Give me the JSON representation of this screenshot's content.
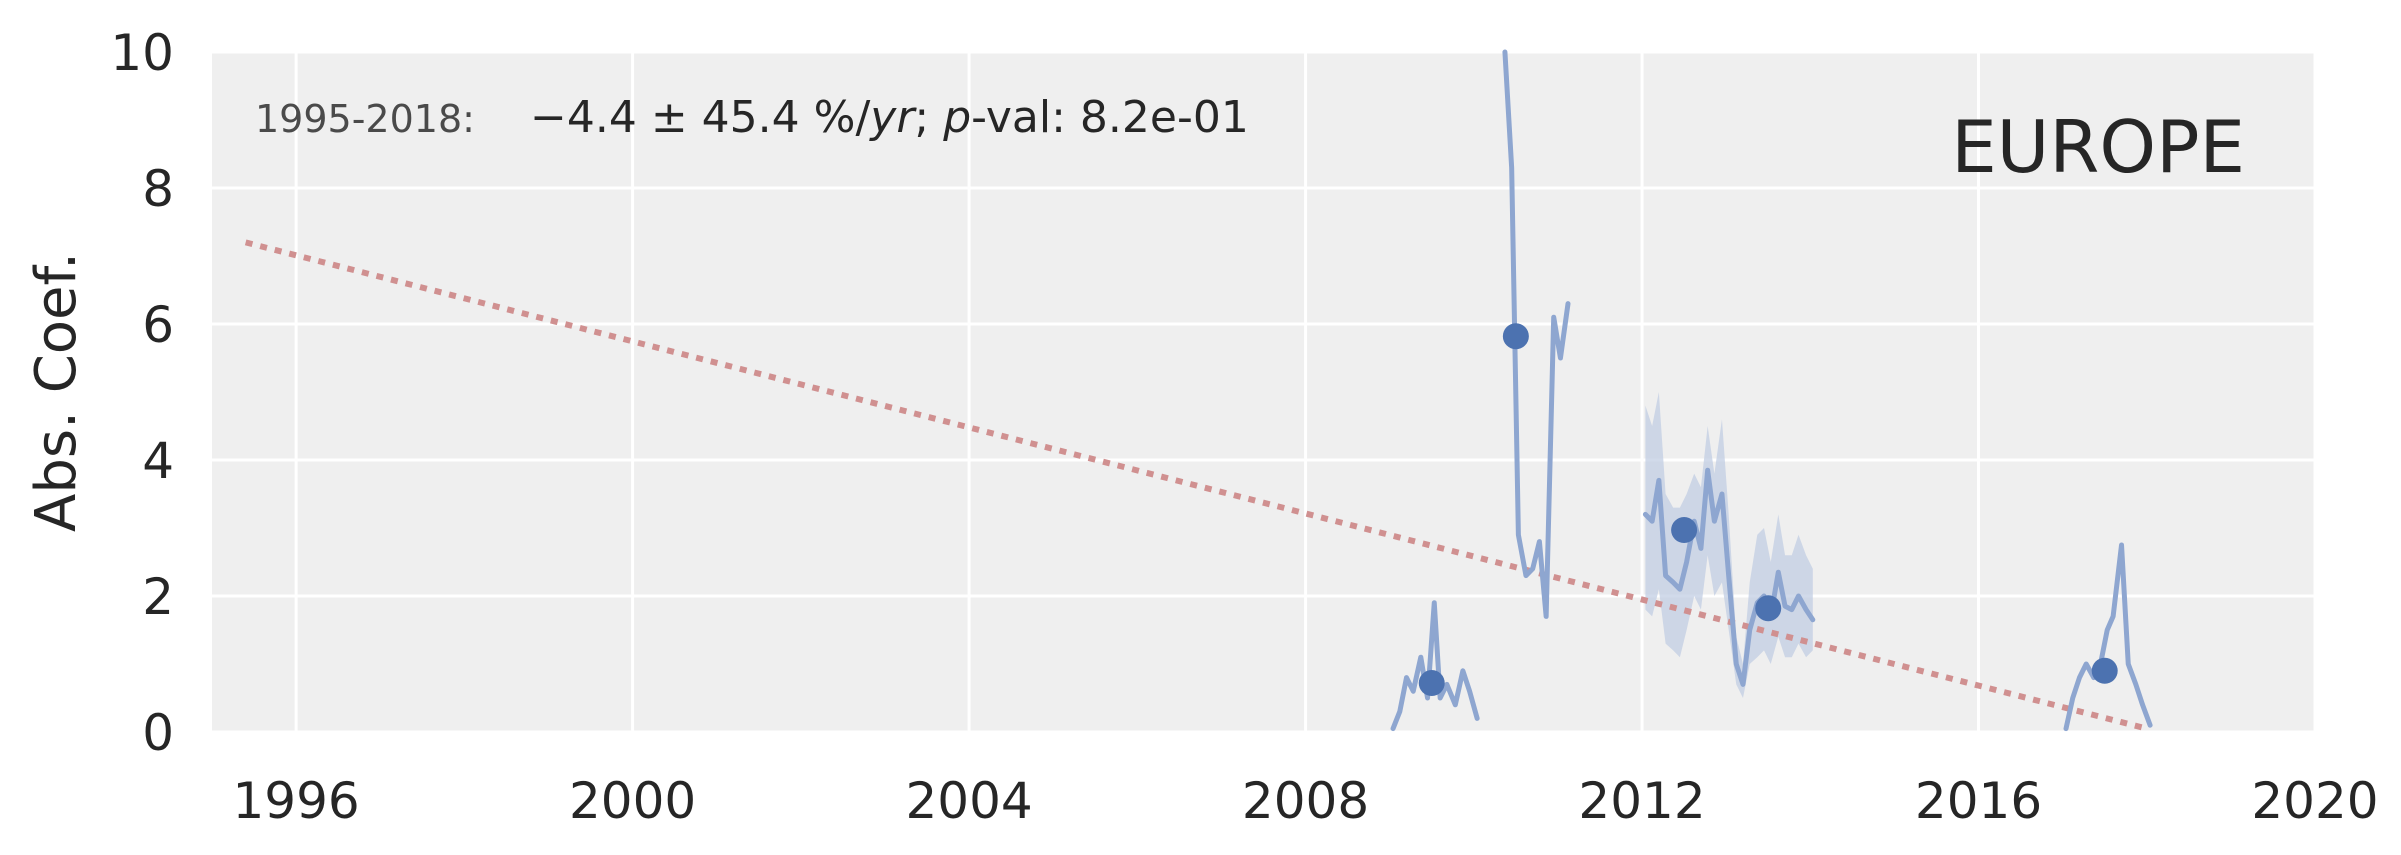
{
  "chart_data": {
    "type": "line",
    "title": "",
    "region_label": "EUROPE",
    "xlabel": "",
    "ylabel": "Abs. Coef.",
    "xlim": [
      1995.0,
      2020.0
    ],
    "ylim": [
      0,
      10
    ],
    "xticks": [
      1996,
      2000,
      2004,
      2008,
      2012,
      2016,
      2020
    ],
    "yticks": [
      0,
      2,
      4,
      6,
      8,
      10
    ],
    "xtick_labels": [
      "1996",
      "2000",
      "2004",
      "2008",
      "2012",
      "2016",
      "2020"
    ],
    "ytick_labels": [
      "0",
      "2",
      "4",
      "6",
      "8",
      "10"
    ],
    "grid": true,
    "annotation": {
      "period": "1995-2018:",
      "stats_prefix": "−4.4 ± 45.4 %/",
      "stats_unit": "yr",
      "stats_sep": "; ",
      "stats_p": "p",
      "stats_suffix": "-val: 8.2e-01"
    },
    "trend": {
      "x": [
        1995.4,
        2018.0
      ],
      "y": [
        7.2,
        0.05
      ],
      "color": "#d09090"
    },
    "series": [
      {
        "color": "#8ea6d0",
        "segments": [
          {
            "x": [
              2009.04,
              2009.12,
              2009.2,
              2009.28,
              2009.37,
              2009.45,
              2009.53,
              2009.6,
              2009.68,
              2009.78,
              2009.87,
              2009.95,
              2010.04
            ],
            "y": [
              0.05,
              0.3,
              0.8,
              0.6,
              1.1,
              0.5,
              1.9,
              0.5,
              0.7,
              0.4,
              0.9,
              0.6,
              0.2
            ]
          },
          {
            "x": [
              2010.37,
              2010.45,
              2010.53,
              2010.62,
              2010.7,
              2010.78,
              2010.86,
              2010.95,
              2011.03,
              2011.12
            ],
            "y": [
              10.0,
              8.3,
              2.9,
              2.3,
              2.4,
              2.8,
              1.7,
              6.1,
              5.5,
              6.3
            ]
          },
          {
            "x": [
              2012.04,
              2012.12,
              2012.2,
              2012.28,
              2012.37,
              2012.45,
              2012.53,
              2012.62,
              2012.7,
              2012.78,
              2012.86,
              2012.95,
              2013.03,
              2013.12,
              2013.2,
              2013.28,
              2013.37,
              2013.45,
              2013.53,
              2013.62,
              2013.7,
              2013.78,
              2013.86,
              2013.95,
              2014.03
            ],
            "y": [
              3.2,
              3.1,
              3.7,
              2.3,
              2.2,
              2.1,
              2.5,
              3.1,
              2.7,
              3.85,
              3.1,
              3.5,
              2.3,
              1.0,
              0.7,
              1.5,
              1.9,
              2.0,
              1.7,
              2.35,
              1.85,
              1.8,
              2.0,
              1.8,
              1.65
            ]
          },
          {
            "x": [
              2017.04,
              2017.12,
              2017.2,
              2017.28,
              2017.37,
              2017.45,
              2017.53,
              2017.6,
              2017.7,
              2017.78,
              2017.87,
              2017.95,
              2018.04
            ],
            "y": [
              0.05,
              0.5,
              0.8,
              1.0,
              0.8,
              1.0,
              1.5,
              1.7,
              2.75,
              1.0,
              0.7,
              0.4,
              0.1
            ]
          }
        ],
        "band": {
          "x": [
            2012.04,
            2012.12,
            2012.2,
            2012.28,
            2012.37,
            2012.45,
            2012.53,
            2012.62,
            2012.7,
            2012.78,
            2012.86,
            2012.95,
            2013.03,
            2013.12,
            2013.2,
            2013.28,
            2013.37,
            2013.45,
            2013.53,
            2013.62,
            2013.7,
            2013.78,
            2013.86,
            2013.95,
            2014.03
          ],
          "lower": [
            1.8,
            1.7,
            2.1,
            1.3,
            1.2,
            1.1,
            1.5,
            2.0,
            1.8,
            2.6,
            2.0,
            2.2,
            1.5,
            0.7,
            0.5,
            1.0,
            1.1,
            1.2,
            1.0,
            1.4,
            1.1,
            1.1,
            1.3,
            1.1,
            1.2
          ],
          "upper": [
            4.8,
            4.5,
            5.0,
            3.5,
            3.3,
            3.3,
            3.5,
            3.8,
            3.6,
            4.5,
            3.8,
            4.6,
            3.2,
            1.4,
            1.0,
            2.2,
            2.9,
            3.0,
            2.5,
            3.2,
            2.6,
            2.6,
            2.9,
            2.6,
            2.4
          ],
          "color": "#c2cde3"
        },
        "annual_means": {
          "x": [
            2009.5,
            2010.5,
            2012.5,
            2013.5,
            2017.5
          ],
          "y": [
            0.72,
            5.82,
            2.97,
            1.82,
            0.9
          ],
          "color": "#4c72b0"
        }
      }
    ]
  }
}
